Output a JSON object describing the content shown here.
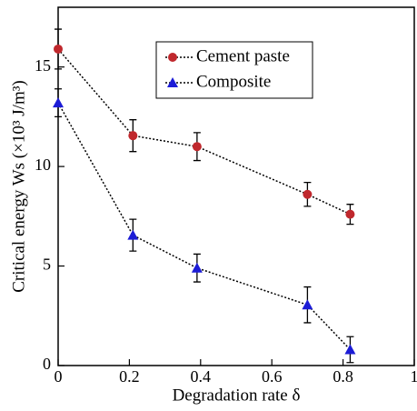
{
  "chart_data": {
    "type": "line",
    "x_label": "Degradation rate δ",
    "y_label": "Critical energy Ws (×10³ J/m³)",
    "x": [
      0,
      0.21,
      0.39,
      0.7,
      0.82
    ],
    "series": [
      {
        "name": "Cement paste",
        "color": "#c0282d",
        "marker": "circle",
        "values": [
          15.9,
          11.55,
          11.0,
          8.6,
          7.6
        ],
        "errors": [
          1.0,
          0.8,
          0.7,
          0.6,
          0.5
        ]
      },
      {
        "name": "Composite",
        "color": "#1c1cd6",
        "marker": "triangle",
        "values": [
          13.2,
          6.55,
          4.9,
          3.05,
          0.8
        ],
        "errors": [
          0.7,
          0.8,
          0.7,
          0.9,
          0.65
        ]
      }
    ],
    "xlim": [
      0,
      1
    ],
    "xticks": [
      0,
      0.2,
      0.4,
      0.6,
      0.8,
      1
    ],
    "ylim": [
      0,
      18
    ],
    "yticks": [
      0,
      5,
      10,
      15
    ],
    "legend": "top-center"
  }
}
